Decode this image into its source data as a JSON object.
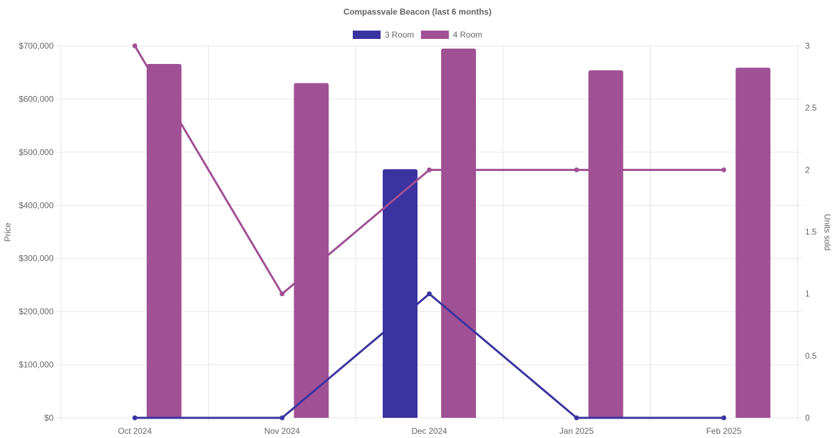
{
  "chart_data": {
    "type": "bar",
    "title": "Compassvale Beacon (last 6 months)",
    "categories": [
      "Oct 2024",
      "Nov 2024",
      "Dec 2024",
      "Jan 2025",
      "Feb 2025"
    ],
    "series": [
      {
        "name": "3 Room",
        "type": "bar",
        "axis": "left",
        "color": "#3a33a0",
        "values": [
          0,
          0,
          468000,
          0,
          0
        ]
      },
      {
        "name": "4 Room",
        "type": "bar",
        "axis": "left",
        "color": "#a05094",
        "values": [
          666000,
          630000,
          695000,
          654000,
          659000
        ]
      },
      {
        "name": "3 Room",
        "type": "line",
        "axis": "right",
        "color": "#3a33a0",
        "values": [
          0,
          0,
          1,
          0,
          0
        ]
      },
      {
        "name": "4 Room",
        "type": "line",
        "axis": "right",
        "color": "#a05094",
        "values": [
          3,
          1,
          2,
          2,
          2
        ]
      }
    ],
    "legend": [
      "3 Room",
      "4 Room"
    ],
    "ylabel": "Price",
    "y2label": "Units sold",
    "ylim": [
      0,
      700000
    ],
    "y2lim": [
      0,
      3
    ],
    "yticks": [
      "$0",
      "$100,000",
      "$200,000",
      "$300,000",
      "$400,000",
      "$500,000",
      "$600,000",
      "$700,000"
    ],
    "y2ticks": [
      "0",
      "0.5",
      "1",
      "1.5",
      "2",
      "2.5",
      "3"
    ],
    "grid": true,
    "legend_position": "top"
  }
}
